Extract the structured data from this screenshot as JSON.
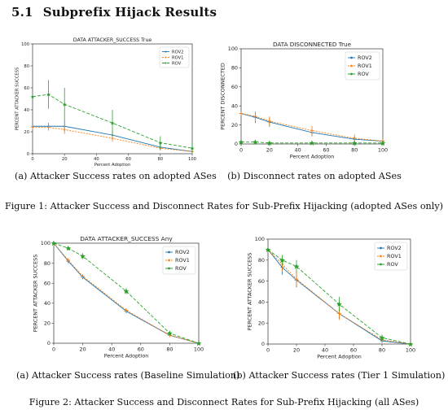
{
  "section": {
    "number": "5.1",
    "title": "Subprefix Hijack Results"
  },
  "figure1": {
    "caption": "Figure 1: Attacker Success and Disconnect Rates for Sub-Prefix Hijacking (adopted ASes only)",
    "subcaptions": [
      "(a) Attacker Success rates on adopted ASes",
      "(b) Disconnect rates on adopted ASes"
    ]
  },
  "figure2": {
    "caption": "Figure 2: Attacker Success and Disconnect Rates for Sub-Prefix Hijacking (all ASes)",
    "subcaptions": [
      "(a) Attacker Success rates (Baseline Simulation)",
      "(b) Attacker Success rates (Tier 1 Simulation)"
    ]
  },
  "colors": {
    "ROV2": "#1f77b4",
    "ROV1": "#ff7f0e",
    "ROV": "#2ca02c"
  },
  "chart_data": [
    {
      "type": "line",
      "title": "DATA ATTACKER_SUCCESS True",
      "xlabel": "Percent Adoption",
      "ylabel": "PERCENT ATTACKER SUCCESS",
      "xlim": [
        0,
        100
      ],
      "ylim": [
        0,
        100
      ],
      "xticks": [
        0,
        20,
        40,
        60,
        80,
        100
      ],
      "yticks": [
        0,
        20,
        40,
        60,
        80,
        100
      ],
      "legend": "top-right",
      "series": [
        {
          "name": "ROV2",
          "x": [
            0,
            10,
            20,
            50,
            80,
            100
          ],
          "y": [
            25,
            25,
            25,
            17,
            6,
            2
          ],
          "err": [
            2,
            3,
            5,
            4,
            3,
            2
          ]
        },
        {
          "name": "ROV1",
          "x": [
            0,
            10,
            20,
            50,
            80,
            100
          ],
          "y": [
            24,
            24,
            22,
            14,
            5,
            2
          ],
          "err": [
            2,
            3,
            4,
            3,
            2,
            2
          ]
        },
        {
          "name": "ROV",
          "x": [
            0,
            10,
            20,
            50,
            80,
            100
          ],
          "y": [
            52,
            54,
            45,
            28,
            10,
            5
          ],
          "err": [
            2,
            13,
            15,
            12,
            6,
            5
          ]
        }
      ]
    },
    {
      "type": "line",
      "title": "DATA DISCONNECTED True",
      "xlabel": "Percent Adoption",
      "ylabel": "PERCENT DISCONNECTED",
      "xlim": [
        0,
        100
      ],
      "ylim": [
        0,
        100
      ],
      "xticks": [
        0,
        20,
        40,
        60,
        80,
        100
      ],
      "yticks": [
        0,
        20,
        40,
        60,
        80,
        100
      ],
      "legend": "top-right",
      "series": [
        {
          "name": "ROV2",
          "x": [
            0,
            10,
            20,
            50,
            80,
            100
          ],
          "y": [
            32,
            28,
            23,
            12,
            5,
            3
          ],
          "err": [
            1,
            6,
            5,
            4,
            3,
            2
          ]
        },
        {
          "name": "ROV1",
          "x": [
            0,
            10,
            20,
            50,
            80,
            100
          ],
          "y": [
            32,
            29,
            24,
            14,
            6,
            3
          ],
          "err": [
            1,
            5,
            5,
            5,
            4,
            2
          ]
        },
        {
          "name": "ROV",
          "x": [
            0,
            10,
            20,
            50,
            80,
            100
          ],
          "y": [
            2,
            2,
            1,
            1,
            1,
            1
          ],
          "err": [
            1,
            2,
            1,
            1,
            1,
            1
          ]
        }
      ]
    },
    {
      "type": "line",
      "title": "DATA ATTACKER_SUCCESS Any",
      "xlabel": "Percent Adoption",
      "ylabel": "PERCENT ATTACKER SUCCESS",
      "xlim": [
        0,
        100
      ],
      "ylim": [
        0,
        100
      ],
      "xticks": [
        0,
        20,
        40,
        60,
        80,
        100
      ],
      "yticks": [
        0,
        20,
        40,
        60,
        80,
        100
      ],
      "legend": "top-right",
      "series": [
        {
          "name": "ROV2",
          "x": [
            0,
            10,
            20,
            50,
            80,
            100
          ],
          "y": [
            100,
            82,
            66,
            32,
            8,
            0
          ],
          "err": [
            0,
            2,
            2,
            2,
            1,
            0
          ]
        },
        {
          "name": "ROV1",
          "x": [
            0,
            10,
            20,
            50,
            80,
            100
          ],
          "y": [
            100,
            83,
            67,
            33,
            8,
            0
          ],
          "err": [
            0,
            2,
            2,
            2,
            1,
            0
          ]
        },
        {
          "name": "ROV",
          "x": [
            0,
            10,
            20,
            50,
            80,
            100
          ],
          "y": [
            100,
            95,
            87,
            52,
            10,
            0
          ],
          "err": [
            0,
            2,
            3,
            3,
            2,
            0
          ]
        }
      ]
    },
    {
      "type": "line",
      "title": "",
      "xlabel": "Percent Adoption",
      "ylabel": "PERCENT ATTACKER SUCCESS",
      "xlim": [
        0,
        100
      ],
      "ylim": [
        0,
        100
      ],
      "xticks": [
        0,
        20,
        40,
        60,
        80,
        100
      ],
      "yticks": [
        0,
        20,
        40,
        60,
        80,
        100
      ],
      "legend": "top-right",
      "series": [
        {
          "name": "ROV2",
          "x": [
            0,
            10,
            20,
            50,
            80,
            100
          ],
          "y": [
            90,
            73,
            61,
            29,
            3,
            0
          ],
          "err": [
            2,
            7,
            7,
            5,
            2,
            0
          ]
        },
        {
          "name": "ROV1",
          "x": [
            0,
            10,
            20,
            50,
            80,
            100
          ],
          "y": [
            90,
            76,
            62,
            29,
            4,
            0
          ],
          "err": [
            2,
            7,
            7,
            6,
            2,
            0
          ]
        },
        {
          "name": "ROV",
          "x": [
            0,
            10,
            20,
            50,
            80,
            100
          ],
          "y": [
            90,
            80,
            74,
            38,
            6,
            0
          ],
          "err": [
            2,
            5,
            6,
            7,
            3,
            0
          ]
        }
      ]
    }
  ]
}
